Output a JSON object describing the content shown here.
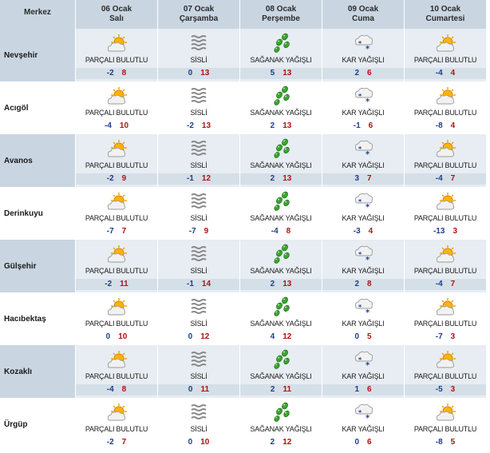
{
  "header": {
    "location_label": "Merkez",
    "days": [
      {
        "date": "06 Ocak",
        "weekday": "Salı"
      },
      {
        "date": "07 Ocak",
        "weekday": "Çarşamba"
      },
      {
        "date": "08 Ocak",
        "weekday": "Perşembe"
      },
      {
        "date": "09 Ocak",
        "weekday": "Cuma"
      },
      {
        "date": "10 Ocak",
        "weekday": "Cumartesi"
      }
    ]
  },
  "colors": {
    "min_temp": "#1d3f8a",
    "max_temp": "#b01212",
    "header_bg": "#c9d6e2",
    "shade_bg": "#e7edf2"
  },
  "icons": {
    "PARÇALI BULUTLU": "partly-cloudy-icon",
    "SİSLİ": "fog-icon",
    "SAĞANAK YAĞIŞLI": "showers-icon",
    "KAR YAĞIŞLI": "snow-icon"
  },
  "rows": [
    {
      "city": "Nevşehir",
      "days": [
        {
          "cond": "PARÇALI BULUTLU",
          "min": "-2",
          "max": "8"
        },
        {
          "cond": "SİSLİ",
          "min": "0",
          "max": "13"
        },
        {
          "cond": "SAĞANAK YAĞIŞLI",
          "min": "5",
          "max": "13"
        },
        {
          "cond": "KAR YAĞIŞLI",
          "min": "2",
          "max": "6"
        },
        {
          "cond": "PARÇALI BULUTLU",
          "min": "-4",
          "max": "4"
        }
      ]
    },
    {
      "city": "Acıgöl",
      "days": [
        {
          "cond": "PARÇALI BULUTLU",
          "min": "-4",
          "max": "10"
        },
        {
          "cond": "SİSLİ",
          "min": "-2",
          "max": "13"
        },
        {
          "cond": "SAĞANAK YAĞIŞLI",
          "min": "2",
          "max": "13"
        },
        {
          "cond": "KAR YAĞIŞLI",
          "min": "-1",
          "max": "6"
        },
        {
          "cond": "PARÇALI BULUTLU",
          "min": "-8",
          "max": "4"
        }
      ]
    },
    {
      "city": "Avanos",
      "days": [
        {
          "cond": "PARÇALI BULUTLU",
          "min": "-2",
          "max": "9"
        },
        {
          "cond": "SİSLİ",
          "min": "-1",
          "max": "12"
        },
        {
          "cond": "SAĞANAK YAĞIŞLI",
          "min": "2",
          "max": "13"
        },
        {
          "cond": "KAR YAĞIŞLI",
          "min": "3",
          "max": "7"
        },
        {
          "cond": "PARÇALI BULUTLU",
          "min": "-4",
          "max": "7"
        }
      ]
    },
    {
      "city": "Derinkuyu",
      "days": [
        {
          "cond": "PARÇALI BULUTLU",
          "min": "-7",
          "max": "7"
        },
        {
          "cond": "SİSLİ",
          "min": "-7",
          "max": "9"
        },
        {
          "cond": "SAĞANAK YAĞIŞLI",
          "min": "-4",
          "max": "8"
        },
        {
          "cond": "KAR YAĞIŞLI",
          "min": "-3",
          "max": "4"
        },
        {
          "cond": "PARÇALI BULUTLU",
          "min": "-13",
          "max": "3"
        }
      ]
    },
    {
      "city": "Gülşehir",
      "days": [
        {
          "cond": "PARÇALI BULUTLU",
          "min": "-2",
          "max": "11"
        },
        {
          "cond": "SİSLİ",
          "min": "-1",
          "max": "14"
        },
        {
          "cond": "SAĞANAK YAĞIŞLI",
          "min": "2",
          "max": "13"
        },
        {
          "cond": "KAR YAĞIŞLI",
          "min": "2",
          "max": "8"
        },
        {
          "cond": "PARÇALI BULUTLU",
          "min": "-4",
          "max": "7"
        }
      ]
    },
    {
      "city": "Hacıbektaş",
      "days": [
        {
          "cond": "PARÇALI BULUTLU",
          "min": "0",
          "max": "10"
        },
        {
          "cond": "SİSLİ",
          "min": "0",
          "max": "12"
        },
        {
          "cond": "SAĞANAK YAĞIŞLI",
          "min": "4",
          "max": "12"
        },
        {
          "cond": "KAR YAĞIŞLI",
          "min": "0",
          "max": "5"
        },
        {
          "cond": "PARÇALI BULUTLU",
          "min": "-7",
          "max": "3"
        }
      ]
    },
    {
      "city": "Kozaklı",
      "days": [
        {
          "cond": "PARÇALI BULUTLU",
          "min": "-4",
          "max": "8"
        },
        {
          "cond": "SİSLİ",
          "min": "0",
          "max": "11"
        },
        {
          "cond": "SAĞANAK YAĞIŞLI",
          "min": "2",
          "max": "11"
        },
        {
          "cond": "KAR YAĞIŞLI",
          "min": "1",
          "max": "6"
        },
        {
          "cond": "PARÇALI BULUTLU",
          "min": "-5",
          "max": "3"
        }
      ]
    },
    {
      "city": "Ürgüp",
      "days": [
        {
          "cond": "PARÇALI BULUTLU",
          "min": "-2",
          "max": "7"
        },
        {
          "cond": "SİSLİ",
          "min": "0",
          "max": "10"
        },
        {
          "cond": "SAĞANAK YAĞIŞLI",
          "min": "2",
          "max": "12"
        },
        {
          "cond": "KAR YAĞIŞLI",
          "min": "0",
          "max": "6"
        },
        {
          "cond": "PARÇALI BULUTLU",
          "min": "-8",
          "max": "5"
        }
      ]
    }
  ]
}
